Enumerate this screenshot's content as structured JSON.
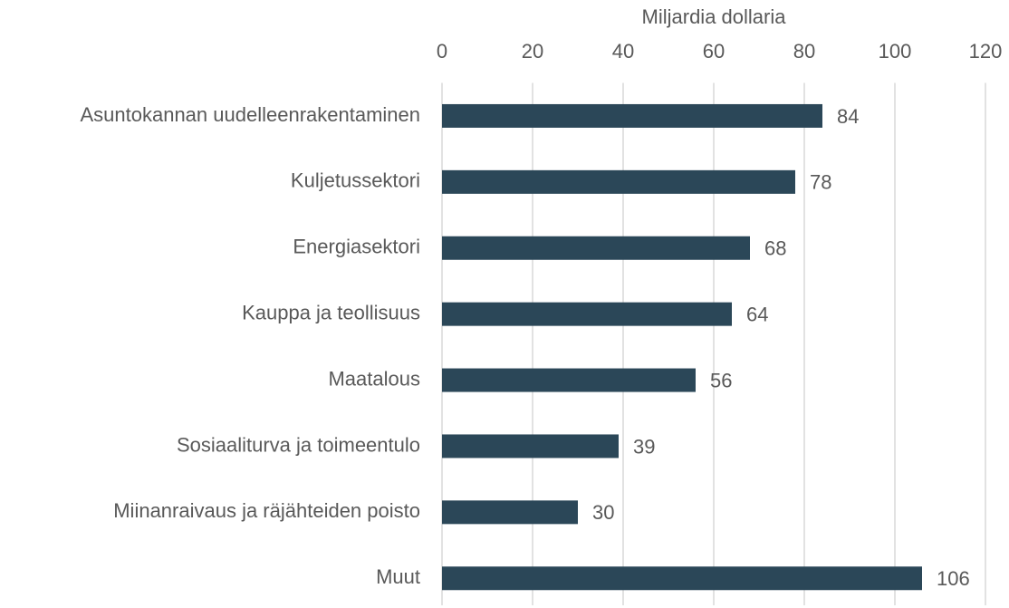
{
  "chart_data": {
    "type": "bar",
    "orientation": "horizontal",
    "x_label": "Miljardia dollaria",
    "categories": [
      "Asuntokannan uudelleenrakentaminen",
      "Kuljetussektori",
      "Energiasektori",
      "Kauppa ja teollisuus",
      "Maatalous",
      "Sosiaaliturva ja toimeentulo",
      "Miinanraivaus ja räjähteiden poisto",
      "Muut"
    ],
    "values": [
      84,
      78,
      68,
      64,
      56,
      39,
      30,
      106
    ],
    "color": "#2b4758",
    "xlim": [
      0,
      120
    ],
    "xticks": [
      0,
      20,
      40,
      60,
      80,
      100,
      120
    ],
    "grid": true
  }
}
